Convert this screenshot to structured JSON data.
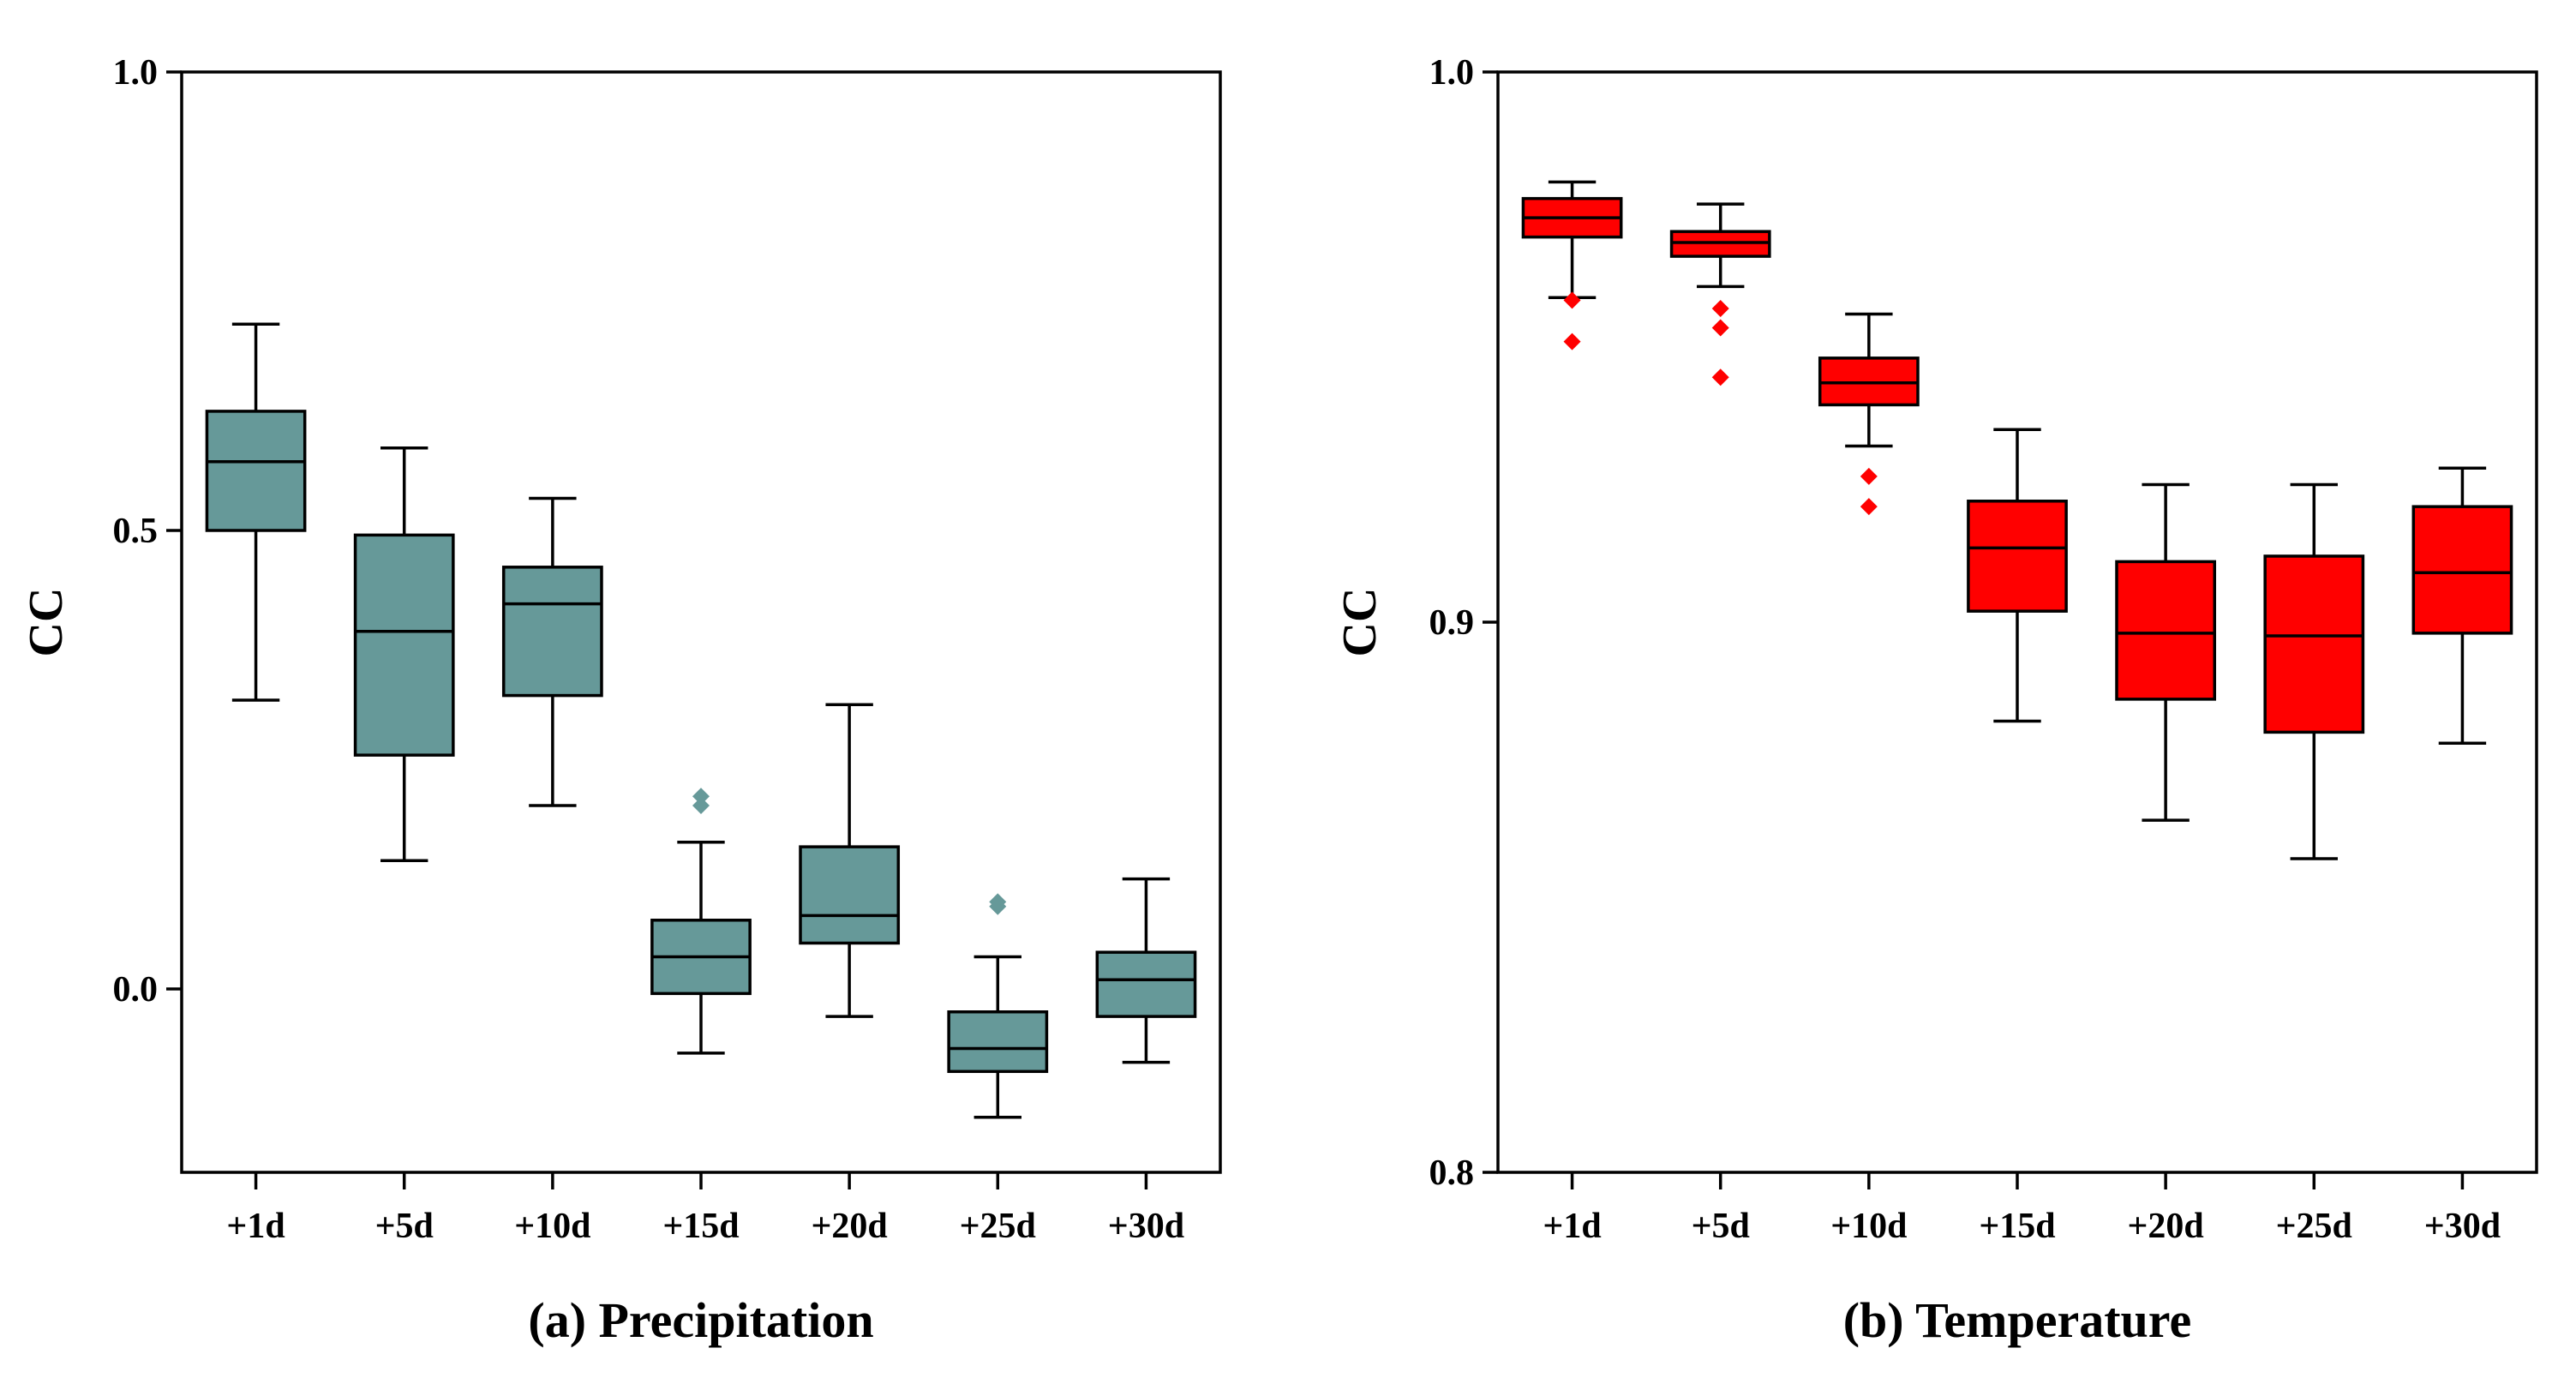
{
  "chart_data": [
    {
      "type": "box",
      "title": "(a) Precipitation",
      "xlabel": "",
      "ylabel": "CC",
      "ylim": [
        -0.2,
        1.0
      ],
      "yticks": [
        0.0,
        0.5,
        1.0
      ],
      "ytick_labels": [
        "0.0",
        "0.5",
        "1.0"
      ],
      "categories": [
        "+1d",
        "+5d",
        "+10d",
        "+15d",
        "+20d",
        "+25d",
        "+30d"
      ],
      "box_color": "#669999",
      "boxes": [
        {
          "whisker_low": 0.315,
          "q1": 0.5,
          "median": 0.575,
          "q3": 0.63,
          "whisker_high": 0.725,
          "outliers": []
        },
        {
          "whisker_low": 0.14,
          "q1": 0.255,
          "median": 0.39,
          "q3": 0.495,
          "whisker_high": 0.59,
          "outliers": []
        },
        {
          "whisker_low": 0.2,
          "q1": 0.32,
          "median": 0.42,
          "q3": 0.46,
          "whisker_high": 0.535,
          "outliers": []
        },
        {
          "whisker_low": -0.07,
          "q1": -0.005,
          "median": 0.035,
          "q3": 0.075,
          "whisker_high": 0.16,
          "outliers": [
            0.2,
            0.21
          ]
        },
        {
          "whisker_low": -0.03,
          "q1": 0.05,
          "median": 0.08,
          "q3": 0.155,
          "whisker_high": 0.31,
          "outliers": []
        },
        {
          "whisker_low": -0.14,
          "q1": -0.09,
          "median": -0.065,
          "q3": -0.025,
          "whisker_high": 0.035,
          "outliers": [
            0.09,
            0.095
          ]
        },
        {
          "whisker_low": -0.08,
          "q1": -0.03,
          "median": 0.01,
          "q3": 0.04,
          "whisker_high": 0.12,
          "outliers": []
        }
      ]
    },
    {
      "type": "box",
      "title": "(b) Temperature",
      "xlabel": "",
      "ylabel": "CC",
      "ylim": [
        0.8,
        1.0
      ],
      "yticks": [
        0.8,
        0.9,
        1.0
      ],
      "ytick_labels": [
        "0.8",
        "0.9",
        "1.0"
      ],
      "categories": [
        "+1d",
        "+5d",
        "+10d",
        "+15d",
        "+20d",
        "+25d",
        "+30d"
      ],
      "box_color": "#ff0000",
      "boxes": [
        {
          "whisker_low": 0.959,
          "q1": 0.97,
          "median": 0.9735,
          "q3": 0.977,
          "whisker_high": 0.98,
          "outliers": [
            0.9585,
            0.951
          ]
        },
        {
          "whisker_low": 0.961,
          "q1": 0.9665,
          "median": 0.969,
          "q3": 0.971,
          "whisker_high": 0.976,
          "outliers": [
            0.957,
            0.9535,
            0.9445
          ]
        },
        {
          "whisker_low": 0.932,
          "q1": 0.9395,
          "median": 0.9435,
          "q3": 0.948,
          "whisker_high": 0.956,
          "outliers": [
            0.9265,
            0.921
          ]
        },
        {
          "whisker_low": 0.882,
          "q1": 0.902,
          "median": 0.9135,
          "q3": 0.922,
          "whisker_high": 0.935,
          "outliers": []
        },
        {
          "whisker_low": 0.864,
          "q1": 0.886,
          "median": 0.898,
          "q3": 0.911,
          "whisker_high": 0.925,
          "outliers": []
        },
        {
          "whisker_low": 0.857,
          "q1": 0.88,
          "median": 0.8975,
          "q3": 0.912,
          "whisker_high": 0.925,
          "outliers": []
        },
        {
          "whisker_low": 0.878,
          "q1": 0.898,
          "median": 0.909,
          "q3": 0.921,
          "whisker_high": 0.928,
          "outliers": []
        }
      ]
    }
  ]
}
